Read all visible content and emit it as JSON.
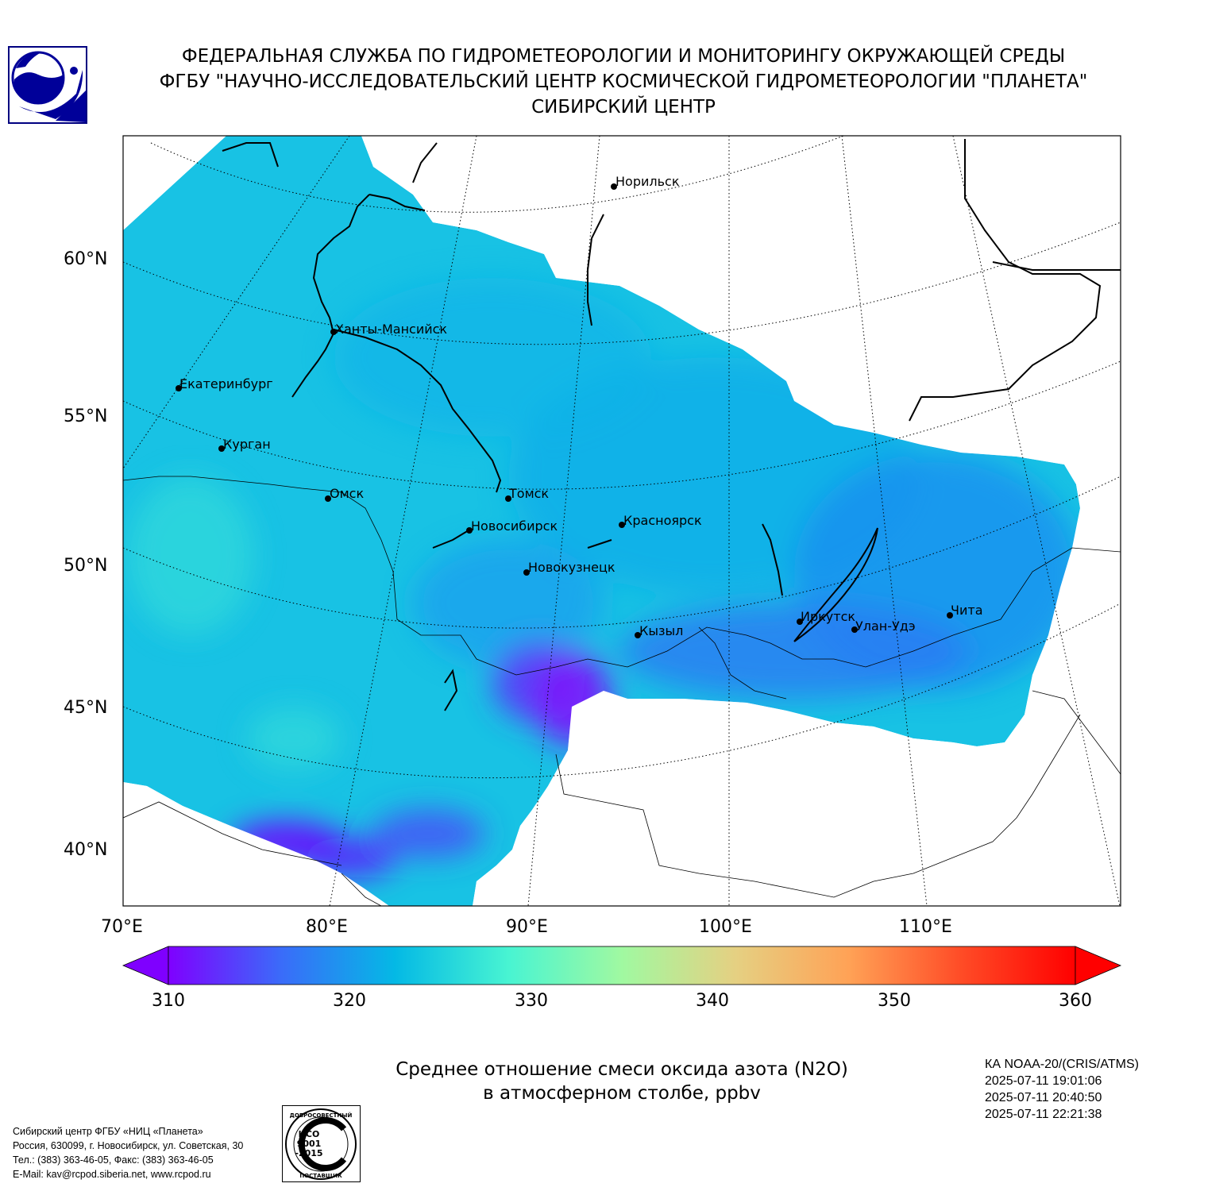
{
  "header": {
    "line1": "ФЕДЕРАЛЬНАЯ СЛУЖБА ПО ГИДРОМЕТЕОРОЛОГИИ И МОНИТОРИНГУ ОКРУЖАЮЩЕЙ СРЕДЫ",
    "line2": "ФГБУ \"НАУЧНО-ИССЛЕДОВАТЕЛЬСКИЙ ЦЕНТР КОСМИЧЕСКОЙ ГИДРОМЕТЕОРОЛОГИИ \"ПЛАНЕТА\"",
    "line3": "СИБИРСКИЙ ЦЕНТР"
  },
  "map": {
    "lat_labels": [
      "60°N",
      "55°N",
      "50°N",
      "45°N",
      "40°N"
    ],
    "lon_labels": [
      "70°E",
      "80°E",
      "90°E",
      "100°E",
      "110°E"
    ],
    "cities": [
      {
        "name": "Норильск"
      },
      {
        "name": "Ханты-Мансийск"
      },
      {
        "name": "Екатеринбург"
      },
      {
        "name": "Курган"
      },
      {
        "name": "Омск"
      },
      {
        "name": "Томск"
      },
      {
        "name": "Новосибирск"
      },
      {
        "name": "Красноярск"
      },
      {
        "name": "Новокузнецк"
      },
      {
        "name": "Кызыл"
      },
      {
        "name": "Иркутск"
      },
      {
        "name": "Улан-Удэ"
      },
      {
        "name": "Чита"
      }
    ]
  },
  "colorbar": {
    "min": 310,
    "max": 360,
    "ticks": [
      "310",
      "320",
      "330",
      "340",
      "350",
      "360"
    ],
    "colors": [
      "#7f00ff",
      "#3a6cf9",
      "#04b9e5",
      "#48f4d2",
      "#a0f9a1",
      "#e5d082",
      "#ffa256",
      "#ff4b26",
      "#ff0000"
    ]
  },
  "caption": {
    "line1": "Среднее отношение смеси оксида азота (N2O)",
    "line2": "в атмосферном столбе, ppbv"
  },
  "satinfo": {
    "satellite": "КА NOAA-20/(CRIS/ATMS)",
    "time1": "2025-07-11 19:01:06",
    "time2": "2025-07-11 20:40:50",
    "time3": "2025-07-11 22:21:38"
  },
  "contact": {
    "line1": "Сибирский центр ФГБУ «НИЦ «Планета»",
    "line2": "Россия, 630099, г. Новосибирск, ул. Советская, 30",
    "line3": "Тел.: (383) 363-46-05, Факс: (383) 363-46-05",
    "line4": "E-Mail: kav@rcpod.siberia.net, www.rcpod.ru"
  },
  "iso_badge": {
    "top_text": "ДОБРОСОВЕСТНЫЙ",
    "line1": "ИСО",
    "line2": "9001",
    "line3": "-2015",
    "bottom_text": "ПОСТАВЩИК"
  }
}
